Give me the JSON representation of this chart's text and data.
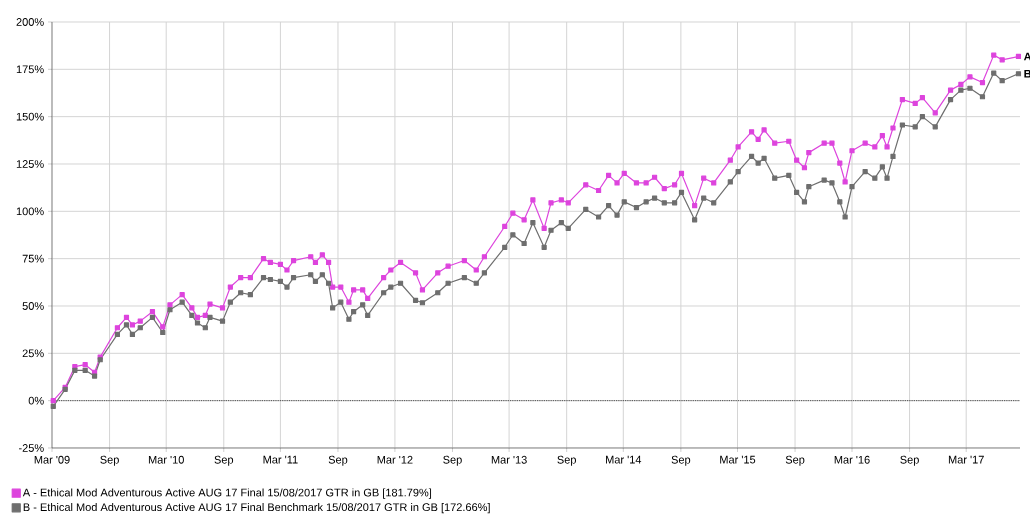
{
  "chart_data": {
    "type": "line",
    "x": [
      "2009-03-05",
      "2009-04-12",
      "2009-05-13",
      "2009-06-15",
      "2009-07-15",
      "2009-08-02",
      "2009-09-26",
      "2009-10-25",
      "2009-11-13",
      "2009-12-08",
      "2010-01-16",
      "2010-02-18",
      "2010-03-13",
      "2010-04-21",
      "2010-05-22",
      "2010-06-09",
      "2010-07-04",
      "2010-07-19",
      "2010-08-28",
      "2010-09-22",
      "2010-10-25",
      "2010-11-25",
      "2011-01-06",
      "2011-01-28",
      "2011-03-01",
      "2011-03-22",
      "2011-04-12",
      "2011-06-06",
      "2011-06-21",
      "2011-07-13",
      "2011-08-02",
      "2011-08-15",
      "2011-09-10",
      "2011-10-06",
      "2011-10-21",
      "2011-11-19",
      "2011-12-05",
      "2012-01-25",
      "2012-02-17",
      "2012-03-19",
      "2012-05-06",
      "2012-05-28",
      "2012-07-16",
      "2012-08-18",
      "2012-10-09",
      "2012-11-16",
      "2012-12-12",
      "2013-02-15",
      "2013-03-13",
      "2013-04-18",
      "2013-05-16",
      "2013-06-21",
      "2013-07-13",
      "2013-08-15",
      "2013-09-06",
      "2013-11-01",
      "2013-12-12",
      "2014-01-13",
      "2014-02-09",
      "2014-03-04",
      "2014-04-12",
      "2014-05-13",
      "2014-06-09",
      "2014-07-10",
      "2014-08-12",
      "2014-09-03",
      "2014-10-15",
      "2014-11-13",
      "2014-12-15",
      "2015-02-06",
      "2015-03-03",
      "2015-04-15",
      "2015-05-06",
      "2015-05-25",
      "2015-06-28",
      "2015-08-12",
      "2015-09-06",
      "2015-10-01",
      "2015-10-15",
      "2015-12-03",
      "2015-12-28",
      "2016-01-22",
      "2016-02-08",
      "2016-03-01",
      "2016-04-12",
      "2016-05-13",
      "2016-06-06",
      "2016-06-21",
      "2016-07-10",
      "2016-08-09",
      "2016-09-19",
      "2016-10-12",
      "2016-11-22",
      "2017-01-10",
      "2017-02-12",
      "2017-03-13",
      "2017-04-22",
      "2017-05-28",
      "2017-06-24",
      "2017-08-15"
    ],
    "series": [
      {
        "name": "A - Ethical Mod Adventurous Active AUG 17 Final  15/08/2017 GTR in GB [181.79%]",
        "color": "#dd44dd",
        "values": [
          0,
          7,
          18,
          19,
          15,
          23,
          38.5,
          44,
          40,
          42,
          47,
          39,
          50.6,
          56,
          49,
          44,
          45,
          51,
          49,
          60,
          65,
          65,
          75,
          73,
          72,
          69,
          74,
          76,
          73,
          77,
          73,
          60,
          60,
          52,
          58.5,
          58.5,
          54,
          65,
          69,
          73,
          67.5,
          58.5,
          67.5,
          71,
          74,
          69,
          76,
          92,
          99,
          95.5,
          106,
          91,
          104.5,
          106,
          104.5,
          114,
          111,
          119,
          115,
          120,
          115,
          115,
          118,
          112,
          114,
          120,
          103,
          117.5,
          115,
          127,
          134,
          142,
          138,
          143,
          136,
          137,
          127,
          123,
          131,
          136,
          136,
          125.5,
          115.5,
          132,
          136,
          134,
          140,
          134,
          144,
          159,
          157,
          160,
          152,
          164,
          167,
          171,
          168,
          182.5,
          180,
          181.79
        ]
      },
      {
        "name": "B - Ethical Mod Adventurous Active AUG 17 Final  Benchmark 15/08/2017 GTR in GB [172.66%]",
        "color": "#6e6e6e",
        "values": [
          -3,
          6,
          16,
          16,
          13,
          21.6,
          35,
          40,
          35,
          38.5,
          44,
          36,
          48,
          52,
          45,
          41,
          38.5,
          44,
          42,
          52,
          57,
          56,
          65,
          64,
          63,
          60,
          65,
          66.5,
          63,
          66.5,
          62,
          49,
          52,
          43,
          47,
          50.6,
          45,
          57,
          60,
          62,
          53,
          51.7,
          57,
          62,
          65,
          62,
          67.5,
          81,
          87.6,
          83,
          94,
          81,
          90,
          94,
          91,
          101,
          97,
          103,
          98,
          105,
          102,
          105,
          107,
          104.5,
          104.5,
          110,
          95.5,
          107,
          104.5,
          115.5,
          121,
          129,
          125.5,
          128,
          117.5,
          119,
          110,
          105,
          113,
          116.5,
          115,
          105,
          97,
          113,
          121,
          117.5,
          123.5,
          117.5,
          129,
          145.6,
          144.6,
          150,
          144.6,
          159,
          164,
          165,
          160.5,
          173,
          169,
          172.66
        ]
      }
    ],
    "xlim": [
      "2009-03-01",
      "2017-08-20"
    ],
    "xticks": [
      {
        "value": "2009-03-01",
        "label": "Mar '09"
      },
      {
        "value": "2009-09-01",
        "label": "Sep"
      },
      {
        "value": "2010-03-01",
        "label": "Mar '10"
      },
      {
        "value": "2010-09-01",
        "label": "Sep"
      },
      {
        "value": "2011-03-01",
        "label": "Mar '11"
      },
      {
        "value": "2011-09-01",
        "label": "Sep"
      },
      {
        "value": "2012-03-01",
        "label": "Mar '12"
      },
      {
        "value": "2012-09-01",
        "label": "Sep"
      },
      {
        "value": "2013-03-01",
        "label": "Mar '13"
      },
      {
        "value": "2013-09-01",
        "label": "Sep"
      },
      {
        "value": "2014-03-01",
        "label": "Mar '14"
      },
      {
        "value": "2014-09-01",
        "label": "Sep"
      },
      {
        "value": "2015-03-01",
        "label": "Mar '15"
      },
      {
        "value": "2015-09-01",
        "label": "Sep"
      },
      {
        "value": "2016-03-01",
        "label": "Mar '16"
      },
      {
        "value": "2016-09-01",
        "label": "Sep"
      },
      {
        "value": "2017-03-01",
        "label": "Mar '17"
      }
    ],
    "ylim": [
      -25,
      200
    ],
    "yticks": [
      {
        "value": -25,
        "label": "-25%"
      },
      {
        "value": 0,
        "label": "0%"
      },
      {
        "value": 25,
        "label": "25%"
      },
      {
        "value": 50,
        "label": "50%"
      },
      {
        "value": 75,
        "label": "75%"
      },
      {
        "value": 100,
        "label": "100%"
      },
      {
        "value": 125,
        "label": "125%"
      },
      {
        "value": 150,
        "label": "150%"
      },
      {
        "value": 175,
        "label": "175%"
      },
      {
        "value": 200,
        "label": "200%"
      }
    ],
    "ref_lines": [
      {
        "axis": "y",
        "value": 0,
        "color": "#000000",
        "line_style": "dotted"
      }
    ],
    "annotations": [
      {
        "text": "A",
        "x": "2017-08-15",
        "y": 181.79
      },
      {
        "text": "B",
        "x": "2017-08-15",
        "y": 172.66
      }
    ],
    "grid": true,
    "legend": "bottom",
    "marker": "square",
    "line_style": "solid"
  }
}
